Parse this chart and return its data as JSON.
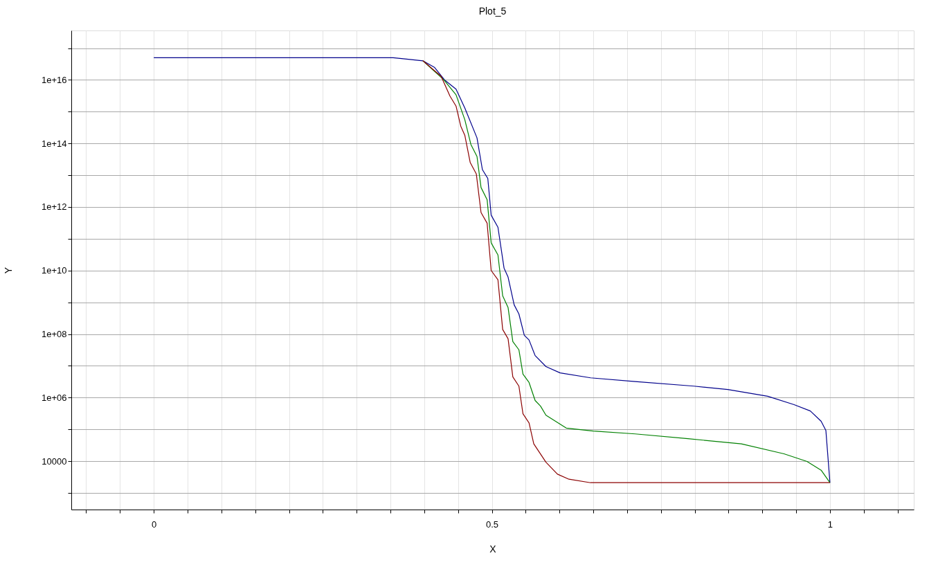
{
  "chart_data": {
    "type": "line",
    "title": "Plot_5",
    "xlabel": "X",
    "ylabel": "Y",
    "log": "y",
    "grid": true,
    "legend": false,
    "marker": "none",
    "line_style": "solid",
    "xlim": [
      -0.122,
      1.124
    ],
    "xticks": [
      {
        "value": -0.1,
        "label": null
      },
      {
        "value": -0.05,
        "label": null
      },
      0,
      {
        "value": 0.05,
        "label": null
      },
      {
        "value": 0.1,
        "label": null
      },
      {
        "value": 0.15,
        "label": null
      },
      {
        "value": 0.2,
        "label": null
      },
      {
        "value": 0.25,
        "label": null
      },
      {
        "value": 0.3,
        "label": null
      },
      {
        "value": 0.35,
        "label": null
      },
      {
        "value": 0.4,
        "label": null
      },
      {
        "value": 0.45,
        "label": null
      },
      0.5,
      {
        "value": 0.55,
        "label": null
      },
      {
        "value": 0.6,
        "label": null
      },
      {
        "value": 0.65,
        "label": null
      },
      {
        "value": 0.7,
        "label": null
      },
      {
        "value": 0.75,
        "label": null
      },
      {
        "value": 0.8,
        "label": null
      },
      {
        "value": 0.85,
        "label": null
      },
      {
        "value": 0.9,
        "label": null
      },
      {
        "value": 0.95,
        "label": null
      },
      1,
      {
        "value": 1.05,
        "label": null
      },
      {
        "value": 1.1,
        "label": null
      }
    ],
    "ylim": [
      300,
      3.6e+17
    ],
    "yticks": [
      {
        "value": 1000,
        "label": null
      },
      10000,
      {
        "value": 100000.0,
        "label": null
      },
      {
        "value": 1000000.0,
        "label": "1e+06"
      },
      {
        "value": 10000000.0,
        "label": null
      },
      {
        "value": 100000000.0,
        "label": "1e+08"
      },
      {
        "value": 1000000000.0,
        "label": null
      },
      {
        "value": 10000000000.0,
        "label": "1e+10"
      },
      {
        "value": 100000000000.0,
        "label": null
      },
      {
        "value": 1000000000000.0,
        "label": "1e+12"
      },
      {
        "value": 10000000000000.0,
        "label": null
      },
      {
        "value": 100000000000000.0,
        "label": "1e+14"
      },
      {
        "value": 1000000000000000.0,
        "label": null
      },
      {
        "value": 1e+16,
        "label": "1e+16"
      },
      {
        "value": 1e+17,
        "label": null
      }
    ],
    "series": [
      {
        "color": "#00008b",
        "x": [
          0,
          0.354,
          0.374,
          0.398,
          0.415,
          0.43,
          0.447,
          0.46,
          0.478,
          0.486,
          0.494,
          0.499,
          0.509,
          0.518,
          0.524,
          0.533,
          0.54,
          0.548,
          0.555,
          0.564,
          0.58,
          0.601,
          0.646,
          0.712,
          0.799,
          0.849,
          0.908,
          0.947,
          0.971,
          0.987,
          0.994,
          1.0
        ],
        "values": [
          5e+16,
          5e+16,
          4.5e+16,
          4e+16,
          2.5e+16,
          1e+16,
          5100000000000000.0,
          1300000000000000.0,
          150000000000000.0,
          15000000000000.0,
          7900000000000.0,
          550000000000.0,
          230000000000.0,
          12000000000.0,
          6200000000.0,
          830000000.0,
          430000000.0,
          91000000.0,
          65000000.0,
          21000000.0,
          9500000.0,
          6000000.0,
          4200000.0,
          3200000.0,
          2300000.0,
          1800000.0,
          1100000.0,
          600000.0,
          380000.0,
          180000.0,
          93000.0,
          2100
        ]
      },
      {
        "color": "#008000",
        "x": [
          0.398,
          0.429,
          0.447,
          0.46,
          0.469,
          0.478,
          0.484,
          0.493,
          0.499,
          0.509,
          0.516,
          0.524,
          0.531,
          0.54,
          0.546,
          0.555,
          0.564,
          0.572,
          0.58,
          0.61,
          0.65,
          0.712,
          0.79,
          0.869,
          0.932,
          0.966,
          0.987,
          1.0
        ],
        "values": [
          4e+16,
          1e+16,
          3400000000000000.0,
          560000000000000.0,
          93000000000000.0,
          39000000000000.0,
          4100000000000.0,
          1700000000000.0,
          74000000000.0,
          31000000000.0,
          1600000000.0,
          680000000.0,
          58000000.0,
          32000000.0,
          5500000.0,
          3000000.0,
          810000.0,
          540000.0,
          280000.0,
          110000.0,
          89000.0,
          72000.0,
          51000.0,
          35000.0,
          17000.0,
          9800,
          5200,
          2100
        ]
      },
      {
        "color": "#8b0000",
        "x": [
          0.398,
          0.425,
          0.438,
          0.447,
          0.454,
          0.46,
          0.468,
          0.477,
          0.484,
          0.493,
          0.499,
          0.509,
          0.516,
          0.524,
          0.531,
          0.54,
          0.546,
          0.555,
          0.562,
          0.571,
          0.58,
          0.597,
          0.614,
          0.646,
          1.0
        ],
        "values": [
          4e+16,
          1.3e+16,
          3100000000000000.0,
          1500000000000000.0,
          350000000000000.0,
          180000000000000.0,
          25000000000000.0,
          11000000000000.0,
          670000000000.0,
          310000000000.0,
          10000000000.0,
          5100000000.0,
          140000000.0,
          71000000.0,
          4500000.0,
          2300000.0,
          310000.0,
          160000.0,
          35000.0,
          18000.0,
          9300,
          3900,
          2700,
          2100,
          2100
        ]
      }
    ]
  }
}
